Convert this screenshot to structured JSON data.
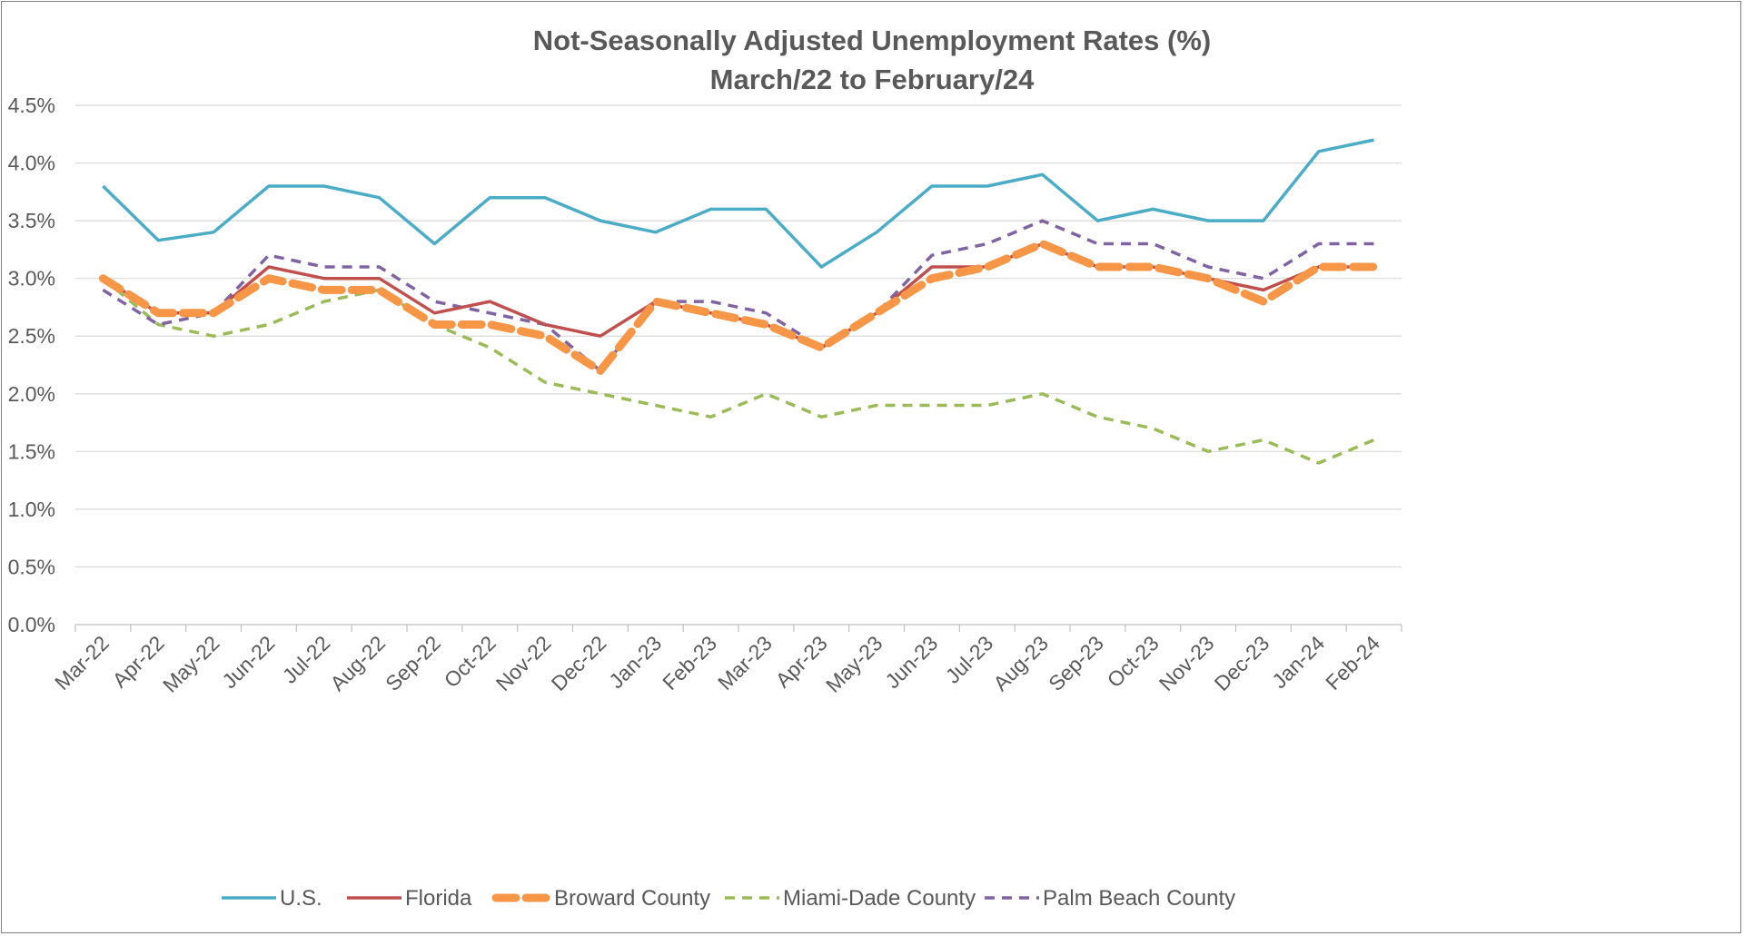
{
  "chart_data": {
    "type": "line",
    "title": "Not-Seasonally Adjusted Unemployment Rates (%)",
    "subtitle": "March/22 to February/24",
    "xlabel": "",
    "ylabel": "",
    "ylim": [
      0,
      4.5
    ],
    "y_ticks": [
      "0.0%",
      "0.5%",
      "1.0%",
      "1.5%",
      "2.0%",
      "2.5%",
      "3.0%",
      "3.5%",
      "4.0%",
      "4.5%"
    ],
    "grid": true,
    "legend_position": "bottom",
    "categories": [
      "Mar-22",
      "Apr-22",
      "May-22",
      "Jun-22",
      "Jul-22",
      "Aug-22",
      "Sep-22",
      "Oct-22",
      "Nov-22",
      "Dec-22",
      "Jan-23",
      "Feb-23",
      "Mar-23",
      "Apr-23",
      "May-23",
      "Jun-23",
      "Jul-23",
      "Aug-23",
      "Sep-23",
      "Oct-23",
      "Nov-23",
      "Dec-23",
      "Jan-24",
      "Feb-24"
    ],
    "series": [
      {
        "name": "U.S.",
        "color": "#4bacc6",
        "dash": "solid",
        "values": [
          3.8,
          3.33,
          3.4,
          3.8,
          3.8,
          3.7,
          3.3,
          3.7,
          3.7,
          3.5,
          3.4,
          3.6,
          3.6,
          3.1,
          3.4,
          3.8,
          3.8,
          3.9,
          3.5,
          3.6,
          3.5,
          3.5,
          4.1,
          4.2
        ]
      },
      {
        "name": "Florida",
        "color": "#c0504d",
        "dash": "solid",
        "values": [
          3.0,
          2.7,
          2.7,
          3.1,
          3.0,
          3.0,
          2.7,
          2.8,
          2.6,
          2.5,
          2.8,
          2.7,
          2.6,
          2.4,
          2.7,
          3.1,
          3.1,
          3.3,
          3.1,
          3.1,
          3.0,
          2.9,
          3.1,
          3.1
        ]
      },
      {
        "name": "Broward County",
        "color": "#f79646",
        "dash": "thick-dash",
        "values": [
          3.0,
          2.7,
          2.7,
          3.0,
          2.9,
          2.9,
          2.6,
          2.6,
          2.5,
          2.2,
          2.8,
          2.7,
          2.6,
          2.4,
          2.7,
          3.0,
          3.1,
          3.3,
          3.1,
          3.1,
          3.0,
          2.8,
          3.1,
          3.1
        ]
      },
      {
        "name": "Miami-Dade County",
        "color": "#9bbb59",
        "dash": "dash",
        "values": [
          3.0,
          2.6,
          2.5,
          2.6,
          2.8,
          2.9,
          2.6,
          2.4,
          2.1,
          2.0,
          1.9,
          1.8,
          2.0,
          1.8,
          1.9,
          1.9,
          1.9,
          2.0,
          1.8,
          1.7,
          1.5,
          1.6,
          1.4,
          1.6
        ]
      },
      {
        "name": "Palm Beach County",
        "color": "#8064a2",
        "dash": "dash",
        "values": [
          2.9,
          2.6,
          2.7,
          3.2,
          3.1,
          3.1,
          2.8,
          2.7,
          2.6,
          2.2,
          2.8,
          2.8,
          2.7,
          2.4,
          2.7,
          3.2,
          3.3,
          3.5,
          3.3,
          3.3,
          3.1,
          3.0,
          3.3,
          3.3
        ]
      }
    ]
  }
}
